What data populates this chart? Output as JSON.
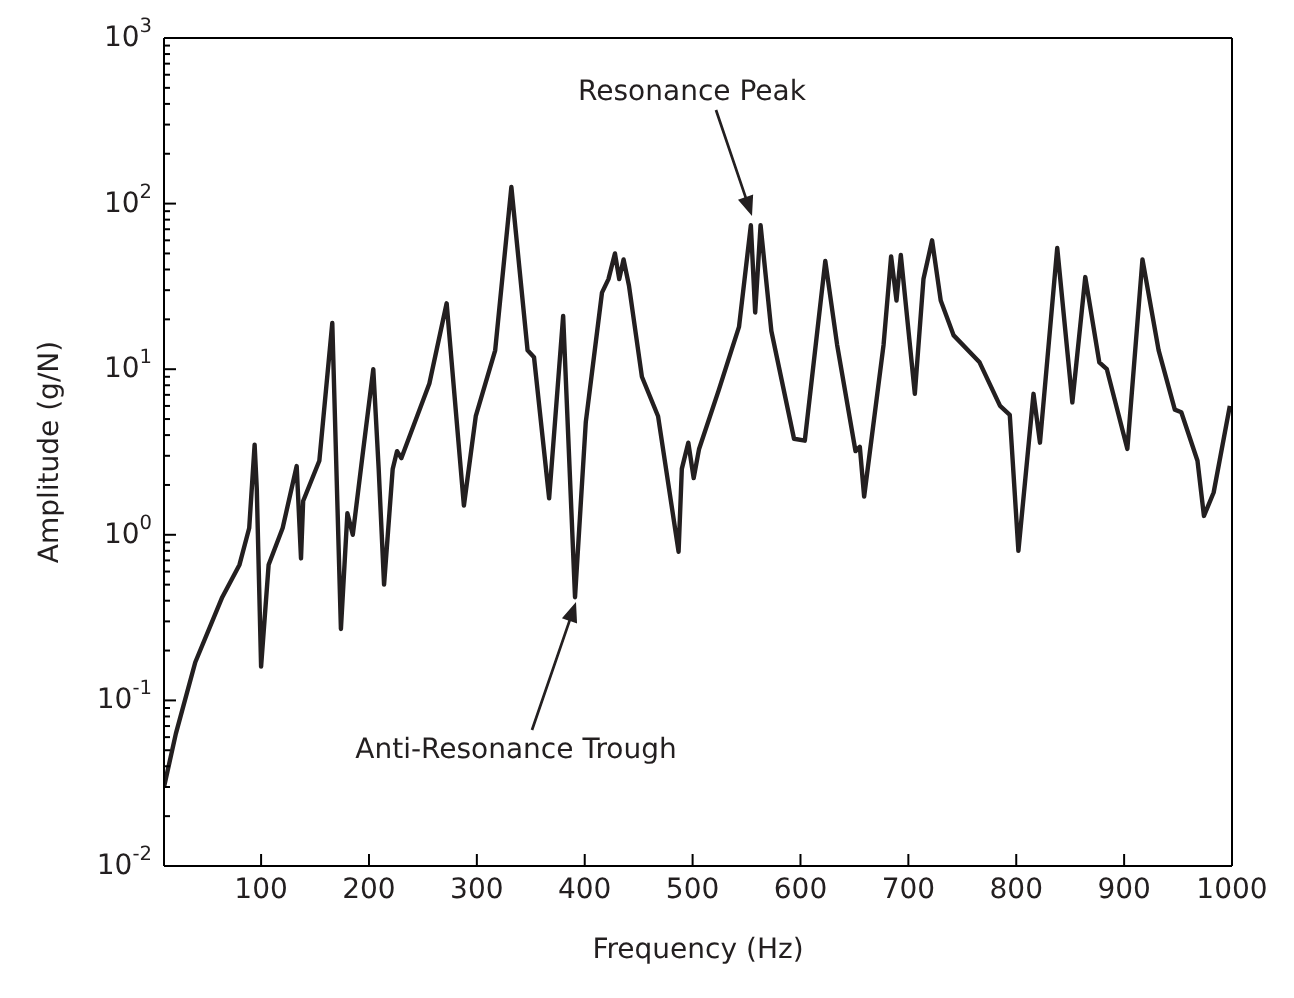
{
  "chart_data": {
    "type": "line",
    "xlabel": "Frequency (Hz)",
    "ylabel": "Amplitude (g/N)",
    "log": "y",
    "marker": "none",
    "line_style": "solid",
    "xlim": [
      10,
      1000
    ],
    "xticks": [
      100,
      200,
      300,
      400,
      500,
      600,
      700,
      800,
      900,
      1000
    ],
    "ylim": [
      0.01,
      1000
    ],
    "yticks": [
      {
        "value": 0.01,
        "label": "10$^{-2}$"
      },
      {
        "value": 0.02,
        "label": null
      },
      {
        "value": 0.03,
        "label": null
      },
      {
        "value": 0.04,
        "label": null
      },
      {
        "value": 0.05,
        "label": null
      },
      {
        "value": 0.06,
        "label": null
      },
      {
        "value": 0.07,
        "label": null
      },
      {
        "value": 0.08,
        "label": null
      },
      {
        "value": 0.09,
        "label": null
      },
      {
        "value": 0.1,
        "label": "10$^{-1}$"
      },
      {
        "value": 0.2,
        "label": null
      },
      {
        "value": 0.3,
        "label": null
      },
      {
        "value": 0.4,
        "label": null
      },
      {
        "value": 0.5,
        "label": null
      },
      {
        "value": 0.6,
        "label": null
      },
      {
        "value": 0.7,
        "label": null
      },
      {
        "value": 0.8,
        "label": null
      },
      {
        "value": 0.9,
        "label": null
      },
      {
        "value": 1,
        "label": "10$^{0}$"
      },
      {
        "value": 2,
        "label": null
      },
      {
        "value": 3,
        "label": null
      },
      {
        "value": 4,
        "label": null
      },
      {
        "value": 5,
        "label": null
      },
      {
        "value": 6,
        "label": null
      },
      {
        "value": 7,
        "label": null
      },
      {
        "value": 8,
        "label": null
      },
      {
        "value": 9,
        "label": null
      },
      {
        "value": 10,
        "label": "10$^{1}$"
      },
      {
        "value": 20,
        "label": null
      },
      {
        "value": 30,
        "label": null
      },
      {
        "value": 40,
        "label": null
      },
      {
        "value": 50,
        "label": null
      },
      {
        "value": 60,
        "label": null
      },
      {
        "value": 70,
        "label": null
      },
      {
        "value": 80,
        "label": null
      },
      {
        "value": 90,
        "label": null
      },
      {
        "value": 100,
        "label": "10$^{2}$"
      },
      {
        "value": 200,
        "label": null
      },
      {
        "value": 300,
        "label": null
      },
      {
        "value": 400,
        "label": null
      },
      {
        "value": 500,
        "label": null
      },
      {
        "value": 600,
        "label": null
      },
      {
        "value": 700,
        "label": null
      },
      {
        "value": 800,
        "label": null
      },
      {
        "value": 900,
        "label": null
      },
      {
        "value": 1000,
        "label": "10$^{3}$"
      }
    ],
    "annotations": [
      "Resonance Peak",
      "Anti-Resonance Trough"
    ],
    "series": [
      {
        "color": "#231f20",
        "x": [
          10,
          21,
          39,
          64,
          80,
          89,
          94,
          96,
          100,
          107,
          120,
          133,
          137,
          139,
          154,
          166,
          174,
          180,
          185,
          194,
          204,
          209,
          214,
          222,
          226,
          230,
          256,
          272,
          288,
          299,
          317,
          332,
          347,
          353,
          367,
          380,
          391,
          401,
          416,
          422,
          428,
          432,
          436,
          441,
          453,
          468,
          487,
          490,
          496,
          501,
          506,
          524,
          536,
          543,
          554,
          558,
          563,
          573,
          594,
          604,
          623,
          634,
          651,
          655,
          659,
          677,
          684,
          689,
          693,
          706,
          714,
          722,
          730,
          742,
          766,
          785,
          794,
          802,
          816,
          822,
          838,
          852,
          864,
          877,
          884,
          903,
          917,
          932,
          947,
          953,
          968,
          974,
          983,
          998
        ],
        "values": [
          0.03,
          0.063,
          0.17,
          0.42,
          0.66,
          1.1,
          3.5,
          1.9,
          0.16,
          0.66,
          1.1,
          2.6,
          0.72,
          1.6,
          2.8,
          19,
          0.27,
          1.35,
          1,
          3,
          10,
          2.5,
          0.5,
          2.5,
          3.2,
          2.9,
          8.2,
          25,
          1.5,
          5.2,
          13,
          126,
          13,
          11.8,
          1.66,
          21,
          0.42,
          4.8,
          29,
          35,
          50,
          35,
          46,
          32,
          9,
          5.2,
          0.79,
          2.5,
          3.6,
          2.2,
          3.3,
          7.4,
          13,
          18,
          74,
          22,
          74,
          17,
          3.8,
          3.7,
          45,
          14,
          3.2,
          3.4,
          1.7,
          14,
          48,
          26,
          49,
          7.1,
          35,
          60,
          26,
          16,
          11,
          6,
          5.3,
          0.8,
          7.1,
          3.6,
          54,
          6.3,
          36,
          11,
          10,
          3.3,
          46,
          13,
          5.7,
          5.5,
          2.8,
          1.3,
          1.8,
          6
        ]
      }
    ]
  }
}
